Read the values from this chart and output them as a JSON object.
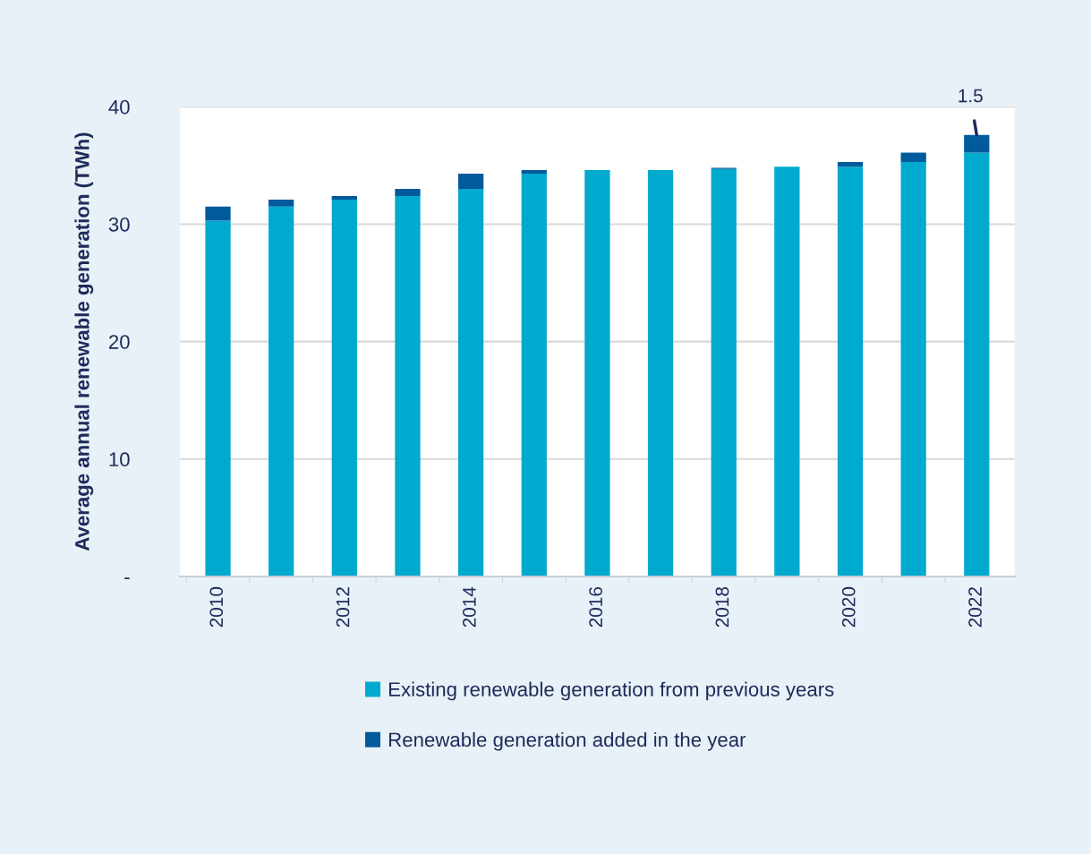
{
  "chart_data": {
    "type": "bar",
    "stacked": true,
    "ylabel": "Average annual renewable generation (TWh)",
    "categories": [
      "2010",
      null,
      "2012",
      null,
      "2014",
      null,
      "2016",
      null,
      "2018",
      null,
      "2020",
      null,
      "2022"
    ],
    "series": [
      {
        "name": "Existing renewable generation from previous years",
        "color": "#00a9ce",
        "values": [
          30.3,
          31.5,
          32.1,
          32.4,
          33.0,
          34.3,
          34.6,
          34.6,
          34.7,
          34.9,
          34.9,
          35.3,
          36.1
        ]
      },
      {
        "name": "Renewable generation added in the year",
        "color": "#005a9c",
        "values": [
          1.2,
          0.6,
          0.3,
          0.6,
          1.3,
          0.3,
          0,
          0,
          0.1,
          0,
          0.4,
          0.8,
          1.5
        ]
      }
    ],
    "ylim": [
      0,
      40
    ],
    "yticks": [
      {
        "value": 0,
        "label": "-"
      },
      10,
      20,
      30,
      40
    ],
    "grid": "y",
    "legend": "bottom",
    "annotations": [
      {
        "text": "1.5",
        "x": "2022",
        "y": 37.6
      }
    ]
  }
}
